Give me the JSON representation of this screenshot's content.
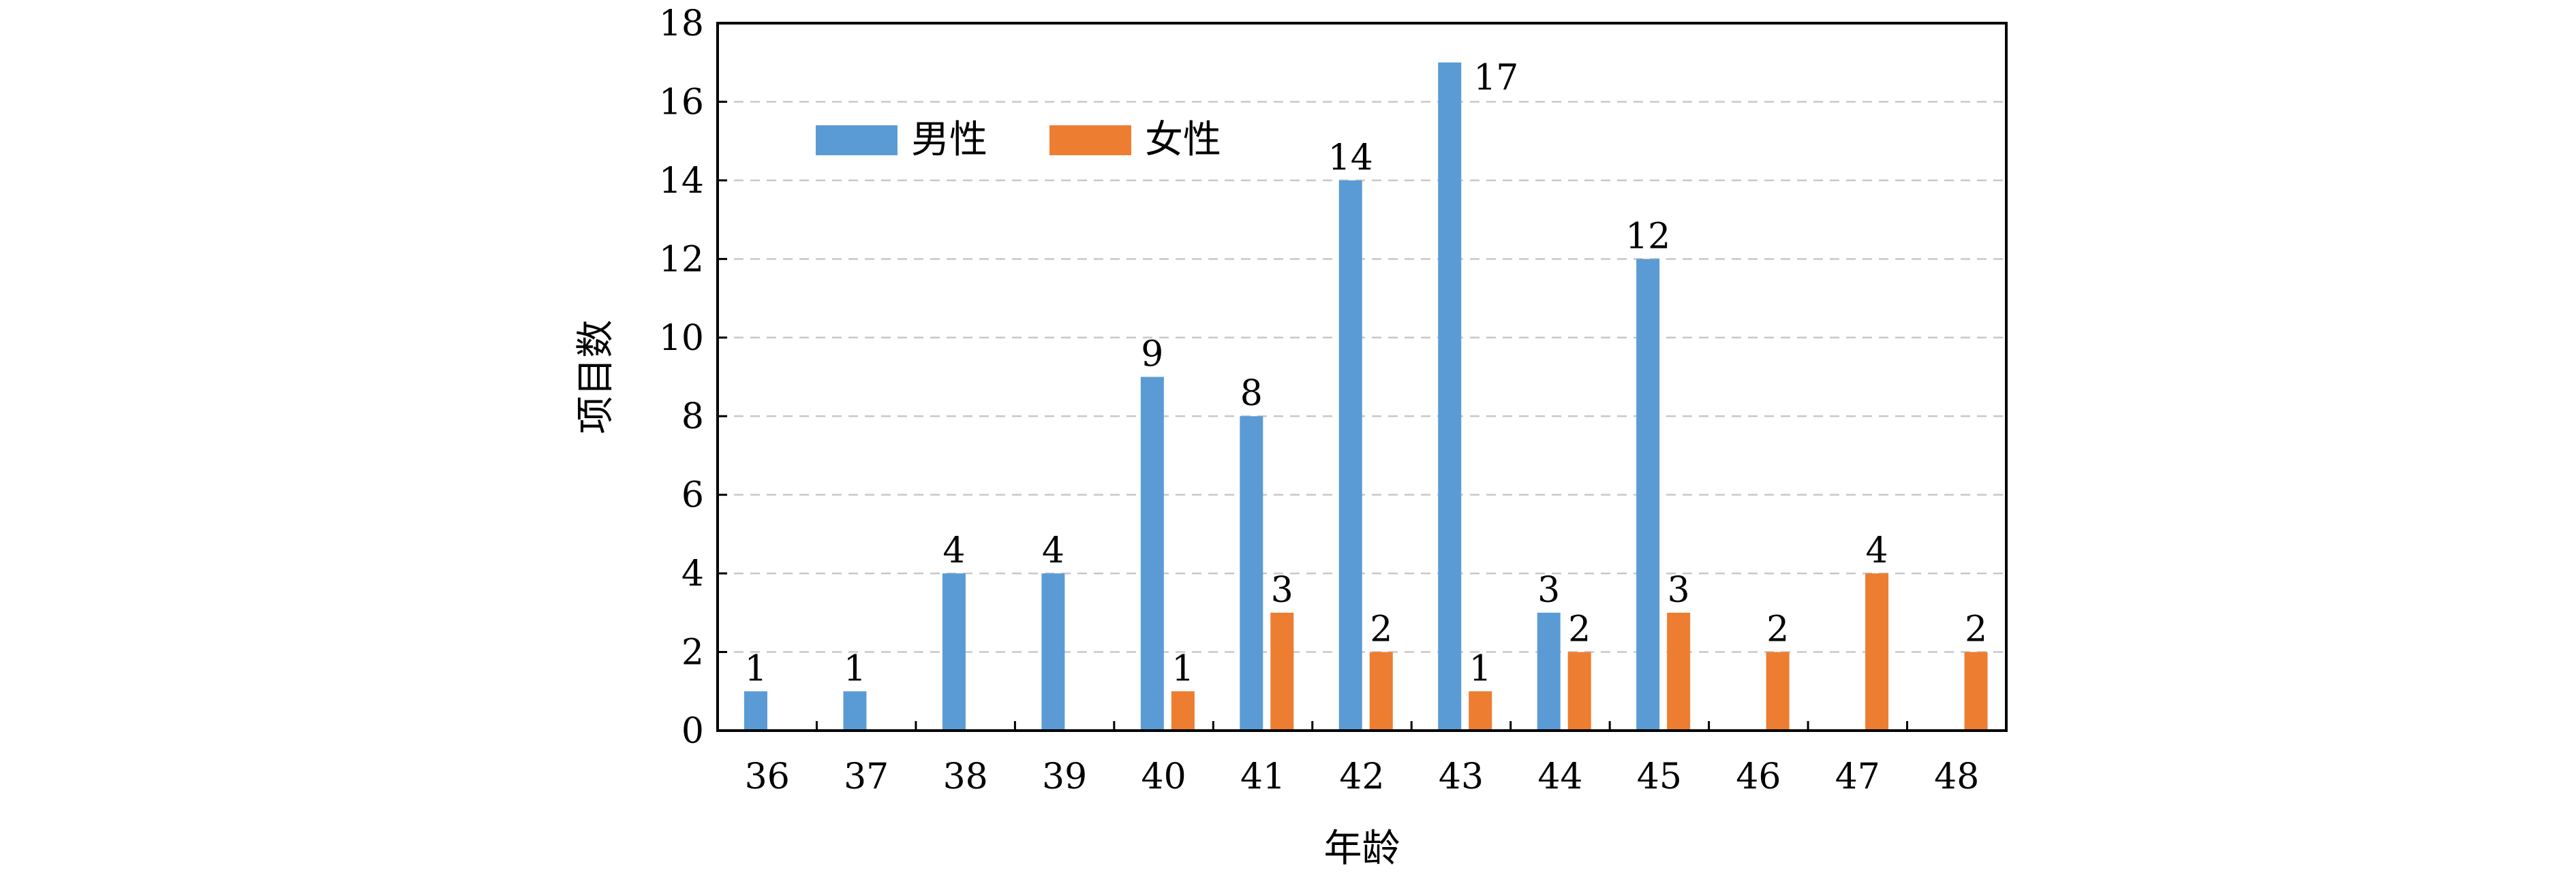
{
  "chart_data": {
    "type": "bar",
    "categories": [
      "36",
      "37",
      "38",
      "39",
      "40",
      "41",
      "42",
      "43",
      "44",
      "45",
      "46",
      "47",
      "48"
    ],
    "series": [
      {
        "name": "男性",
        "color": "#5b9bd5",
        "values": [
          1,
          1,
          4,
          4,
          9,
          8,
          14,
          17,
          3,
          12,
          0,
          0,
          0
        ]
      },
      {
        "name": "女性",
        "color": "#ed7d31",
        "values": [
          0,
          0,
          0,
          0,
          1,
          3,
          2,
          1,
          2,
          3,
          2,
          4,
          2
        ]
      }
    ],
    "xlabel": "年龄",
    "ylabel": "项目数",
    "ylim": [
      0,
      18
    ],
    "yticks": [
      0,
      2,
      4,
      6,
      8,
      10,
      12,
      14,
      16,
      18
    ],
    "grid": true,
    "legend_position": "top-left"
  }
}
